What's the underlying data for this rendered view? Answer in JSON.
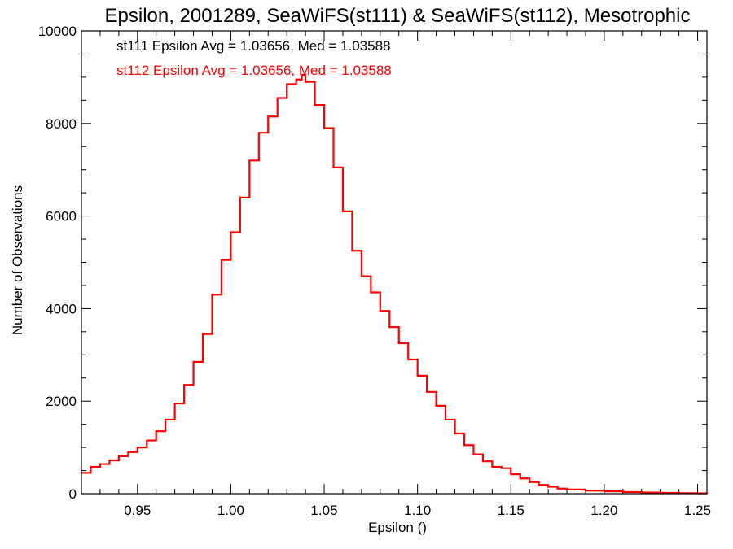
{
  "chart_data": {
    "type": "line",
    "title": "Epsilon, 2001289, SeaWiFS(st111) & SeaWiFS(st112), Mesotrophic",
    "xlabel": "Epsilon ()",
    "ylabel": "Number of Observations",
    "xlim": [
      0.92,
      1.255
    ],
    "ylim": [
      0,
      10000
    ],
    "xticks": [
      0.95,
      1.0,
      1.05,
      1.1,
      1.15,
      1.2,
      1.25
    ],
    "xtick_labels": [
      "0.95",
      "1.00",
      "1.05",
      "1.10",
      "1.15",
      "1.20",
      "1.25"
    ],
    "yticks": [
      0,
      2000,
      4000,
      6000,
      8000,
      10000
    ],
    "ytick_labels": [
      "0",
      "2000",
      "4000",
      "6000",
      "8000",
      "10000"
    ],
    "step": true,
    "grid": false,
    "legend_position": "top-left",
    "annotations": [
      {
        "text": "st111 Epsilon Avg = 1.03656, Med = 1.03588",
        "color": "#000000"
      },
      {
        "text": "st112 Epsilon Avg = 1.03656, Med = 1.03588",
        "color": "#ff0000"
      }
    ],
    "series": [
      {
        "color": "#ff0000",
        "x": [
          0.92,
          0.925,
          0.93,
          0.935,
          0.94,
          0.945,
          0.95,
          0.955,
          0.96,
          0.965,
          0.97,
          0.975,
          0.98,
          0.985,
          0.99,
          0.995,
          1.0,
          1.005,
          1.01,
          1.015,
          1.02,
          1.025,
          1.03,
          1.035,
          1.038,
          1.04,
          1.045,
          1.05,
          1.055,
          1.06,
          1.065,
          1.07,
          1.075,
          1.08,
          1.085,
          1.09,
          1.095,
          1.1,
          1.105,
          1.11,
          1.115,
          1.12,
          1.125,
          1.13,
          1.135,
          1.14,
          1.145,
          1.15,
          1.155,
          1.16,
          1.165,
          1.17,
          1.175,
          1.18,
          1.19,
          1.2,
          1.21,
          1.22,
          1.23,
          1.24,
          1.25,
          1.255
        ],
        "y": [
          450,
          580,
          640,
          720,
          810,
          900,
          1000,
          1150,
          1350,
          1600,
          1950,
          2350,
          2850,
          3450,
          4300,
          5050,
          5650,
          6400,
          7200,
          7800,
          8150,
          8550,
          8850,
          8950,
          9050,
          8900,
          8400,
          7900,
          7050,
          6100,
          5250,
          4700,
          4350,
          3950,
          3600,
          3250,
          2900,
          2550,
          2200,
          1900,
          1600,
          1300,
          1050,
          850,
          700,
          580,
          550,
          420,
          330,
          250,
          190,
          150,
          110,
          90,
          65,
          50,
          35,
          25,
          18,
          12,
          8,
          5
        ]
      }
    ]
  }
}
